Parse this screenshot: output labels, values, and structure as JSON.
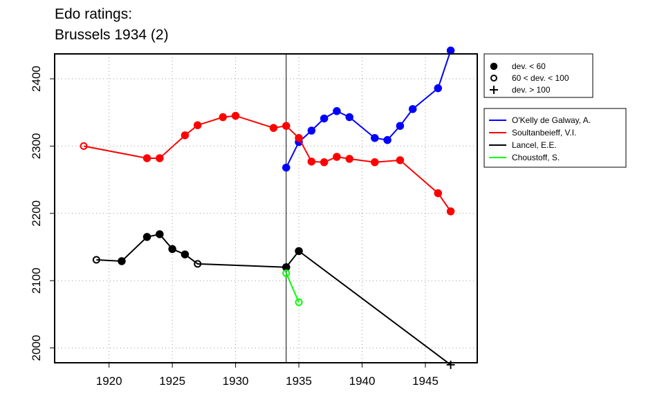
{
  "chart_data": {
    "type": "line",
    "title_lines": [
      "Edo ratings:",
      "Brussels 1934 (2)"
    ],
    "xlabel": "",
    "ylabel": "",
    "xlim": [
      1915.7,
      1949.1
    ],
    "ylim": [
      1978,
      2437
    ],
    "x_ticks": [
      1920,
      1925,
      1930,
      1935,
      1940,
      1945
    ],
    "y_ticks": [
      2000,
      2100,
      2200,
      2300,
      2400
    ],
    "grid": true,
    "event_line_x": 1934,
    "deviation_legend": [
      {
        "symbol": "filled-circle",
        "label": "dev. < 60"
      },
      {
        "symbol": "open-circle",
        "label": "60 < dev. < 100"
      },
      {
        "symbol": "plus",
        "label": "dev. > 100"
      }
    ],
    "series": [
      {
        "name": "O'Kelly de Galway, A.",
        "color": "#0000ff",
        "points": [
          {
            "x": 1934,
            "y": 2268,
            "marker": "filled-circle"
          },
          {
            "x": 1935,
            "y": 2306,
            "marker": "filled-circle"
          },
          {
            "x": 1936,
            "y": 2323,
            "marker": "filled-circle"
          },
          {
            "x": 1937,
            "y": 2341,
            "marker": "filled-circle"
          },
          {
            "x": 1938,
            "y": 2352,
            "marker": "filled-circle"
          },
          {
            "x": 1939,
            "y": 2343,
            "marker": "filled-circle"
          },
          {
            "x": 1941,
            "y": 2312,
            "marker": "filled-circle"
          },
          {
            "x": 1942,
            "y": 2309,
            "marker": "filled-circle"
          },
          {
            "x": 1943,
            "y": 2330,
            "marker": "filled-circle"
          },
          {
            "x": 1944,
            "y": 2355,
            "marker": "filled-circle"
          },
          {
            "x": 1946,
            "y": 2386,
            "marker": "filled-circle"
          },
          {
            "x": 1947,
            "y": 2442,
            "marker": "filled-circle"
          }
        ]
      },
      {
        "name": "Soultanbeieff, V.I.",
        "color": "#ff0000",
        "points": [
          {
            "x": 1918,
            "y": 2300,
            "marker": "open-circle"
          },
          {
            "x": 1923,
            "y": 2282,
            "marker": "filled-circle"
          },
          {
            "x": 1924,
            "y": 2282,
            "marker": "filled-circle"
          },
          {
            "x": 1926,
            "y": 2316,
            "marker": "filled-circle"
          },
          {
            "x": 1927,
            "y": 2331,
            "marker": "filled-circle"
          },
          {
            "x": 1929,
            "y": 2343,
            "marker": "filled-circle"
          },
          {
            "x": 1930,
            "y": 2345,
            "marker": "filled-circle"
          },
          {
            "x": 1933,
            "y": 2327,
            "marker": "filled-circle"
          },
          {
            "x": 1934,
            "y": 2330,
            "marker": "filled-circle"
          },
          {
            "x": 1935,
            "y": 2312,
            "marker": "filled-circle"
          },
          {
            "x": 1936,
            "y": 2277,
            "marker": "filled-circle"
          },
          {
            "x": 1937,
            "y": 2276,
            "marker": "filled-circle"
          },
          {
            "x": 1938,
            "y": 2284,
            "marker": "filled-circle"
          },
          {
            "x": 1939,
            "y": 2281,
            "marker": "filled-circle"
          },
          {
            "x": 1941,
            "y": 2276,
            "marker": "filled-circle"
          },
          {
            "x": 1943,
            "y": 2279,
            "marker": "filled-circle"
          },
          {
            "x": 1946,
            "y": 2230,
            "marker": "filled-circle"
          },
          {
            "x": 1947,
            "y": 2203,
            "marker": "filled-circle"
          }
        ]
      },
      {
        "name": "Lancel, E.E.",
        "color": "#000000",
        "points": [
          {
            "x": 1919,
            "y": 2131,
            "marker": "open-circle"
          },
          {
            "x": 1921,
            "y": 2129,
            "marker": "filled-circle"
          },
          {
            "x": 1923,
            "y": 2165,
            "marker": "filled-circle"
          },
          {
            "x": 1924,
            "y": 2169,
            "marker": "filled-circle"
          },
          {
            "x": 1925,
            "y": 2147,
            "marker": "filled-circle"
          },
          {
            "x": 1926,
            "y": 2139,
            "marker": "filled-circle"
          },
          {
            "x": 1927,
            "y": 2125,
            "marker": "open-circle"
          },
          {
            "x": 1934,
            "y": 2120,
            "marker": "filled-circle"
          },
          {
            "x": 1935,
            "y": 2144,
            "marker": "filled-circle"
          },
          {
            "x": 1947,
            "y": 1975,
            "marker": "plus"
          }
        ]
      },
      {
        "name": "Choustoff, S.",
        "color": "#00ff00",
        "points": [
          {
            "x": 1934,
            "y": 2111,
            "marker": "open-circle"
          },
          {
            "x": 1935,
            "y": 2068,
            "marker": "open-circle"
          }
        ]
      }
    ]
  }
}
